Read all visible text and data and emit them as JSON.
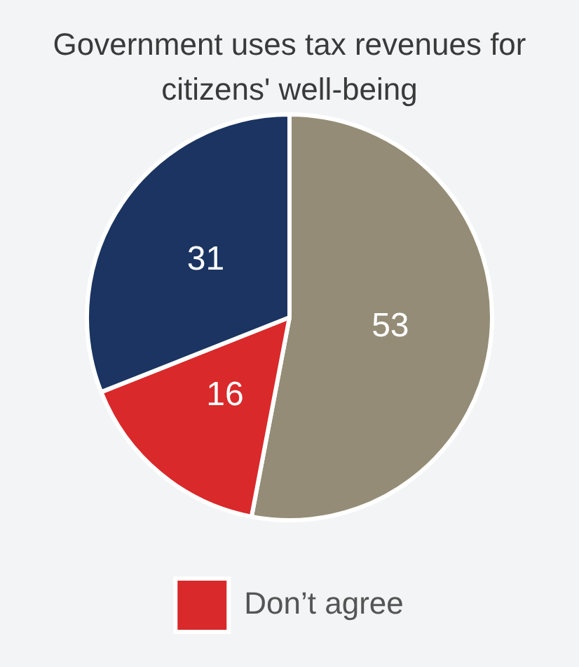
{
  "chart_data": {
    "type": "pie",
    "title": "Government uses tax revenues for citizens' well-being",
    "categories": [
      null,
      "Don’t agree",
      null
    ],
    "values": [
      53,
      16,
      31
    ],
    "colors": [
      "#948c76",
      "#d9292b",
      "#1b3461"
    ],
    "data_labels": true,
    "legend": "bottom"
  }
}
